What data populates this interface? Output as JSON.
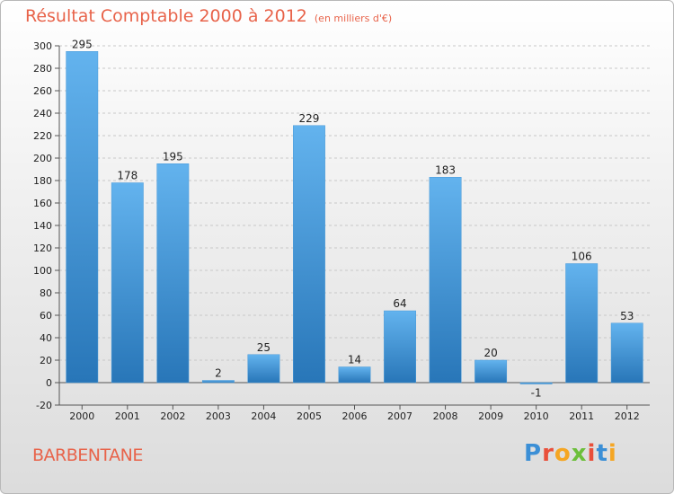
{
  "title": "Résultat Comptable 2000 à 2012",
  "unit": "(en milliers d'€)",
  "place": "BARBENTANE",
  "logo": {
    "text": "Proxiti",
    "letter_colors": [
      "#3b8fd6",
      "#e94f3a",
      "#f5a623",
      "#6cbf3b",
      "#e94f3a",
      "#3b8fd6",
      "#f5a623"
    ]
  },
  "colors": {
    "title": "#e8634a",
    "bar_top": "#63b3ee",
    "bar_bottom": "#2876b8",
    "grid": "#c8c8c8",
    "axis": "#555555",
    "text": "#222222"
  },
  "chart_data": {
    "type": "bar",
    "categories": [
      "2000",
      "2001",
      "2002",
      "2003",
      "2004",
      "2005",
      "2006",
      "2007",
      "2008",
      "2009",
      "2010",
      "2011",
      "2012"
    ],
    "values": [
      295,
      178,
      195,
      2,
      25,
      229,
      14,
      64,
      183,
      20,
      -1,
      106,
      53
    ],
    "value_labels": [
      "295",
      "178",
      "195",
      "2",
      "25",
      "229",
      "14",
      "64",
      "183",
      "20",
      "-1",
      "106",
      "53"
    ],
    "ylim": [
      -20,
      300
    ],
    "yticks": [
      -20,
      0,
      20,
      40,
      60,
      80,
      100,
      120,
      140,
      160,
      180,
      200,
      220,
      240,
      260,
      280,
      300
    ],
    "grid": true
  }
}
